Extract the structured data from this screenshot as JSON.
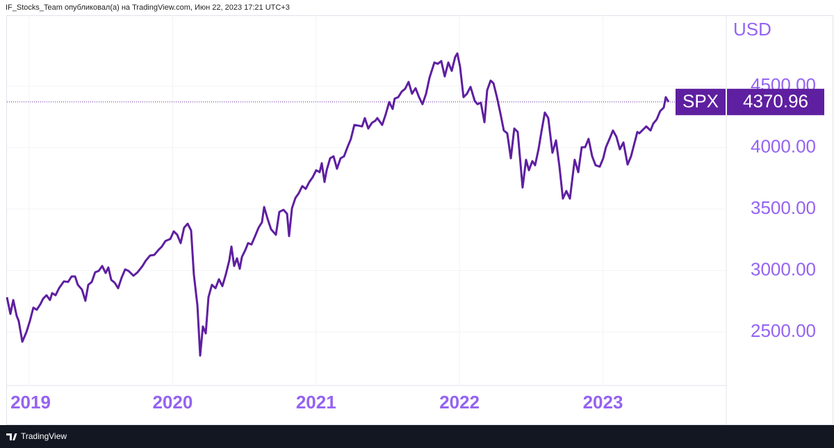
{
  "header": {
    "text": "IF_Stocks_Team опубликовал(а) на TradingView.com, Июн 22, 2023 17:21 UTC+3"
  },
  "footer": {
    "brand": "TradingView"
  },
  "chart_data": {
    "type": "line",
    "axis_label": "USD",
    "grid": true,
    "xlim": [
      2018.845,
      2023.86
    ],
    "xticks": [
      2019,
      2020,
      2021,
      2022,
      2023
    ],
    "ylim": [
      2065,
      5076
    ],
    "yticks": [
      {
        "value": 2500,
        "label": "2500.00"
      },
      {
        "value": 3000,
        "label": "3000.00"
      },
      {
        "value": 3500,
        "label": "3500.00"
      },
      {
        "value": 4000,
        "label": "4000.00"
      },
      {
        "value": 4500,
        "label": "4500.00"
      }
    ],
    "x": [
      2018.845,
      2018.869,
      2018.889,
      2018.913,
      2018.927,
      2018.952,
      2018.981,
      2019.005,
      2019.029,
      2019.053,
      2019.078,
      2019.097,
      2019.121,
      2019.145,
      2019.16,
      2019.184,
      2019.208,
      2019.242,
      2019.271,
      2019.296,
      2019.32,
      2019.339,
      2019.368,
      2019.392,
      2019.412,
      2019.436,
      2019.46,
      2019.485,
      2019.509,
      2019.533,
      2019.552,
      2019.572,
      2019.596,
      2019.62,
      2019.644,
      2019.669,
      2019.693,
      2019.727,
      2019.756,
      2019.79,
      2019.814,
      2019.843,
      2019.872,
      2019.901,
      2019.925,
      2019.95,
      2019.984,
      2020.008,
      2020.032,
      2020.056,
      2020.08,
      2020.105,
      2020.129,
      2020.148,
      2020.173,
      2020.192,
      2020.211,
      2020.231,
      2020.25,
      2020.274,
      2020.299,
      2020.323,
      2020.347,
      2020.371,
      2020.395,
      2020.41,
      2020.429,
      2020.449,
      2020.468,
      2020.483,
      2020.507,
      2020.526,
      2020.55,
      2020.575,
      2020.599,
      2020.623,
      2020.638,
      2020.662,
      2020.686,
      2020.72,
      2020.744,
      2020.773,
      2020.798,
      2020.812,
      2020.832,
      2020.856,
      2020.88,
      2020.904,
      2020.928,
      2020.953,
      2020.977,
      2021.001,
      2021.025,
      2021.04,
      2021.059,
      2021.074,
      2021.098,
      2021.122,
      2021.146,
      2021.171,
      2021.195,
      2021.219,
      2021.243,
      2021.267,
      2021.296,
      2021.321,
      2021.34,
      2021.364,
      2021.389,
      2021.413,
      2021.427,
      2021.461,
      2021.485,
      2021.51,
      2021.534,
      2021.548,
      2021.573,
      2021.597,
      2021.621,
      2021.645,
      2021.669,
      2021.694,
      2021.718,
      2021.742,
      2021.767,
      2021.791,
      2021.825,
      2021.849,
      2021.873,
      2021.897,
      2021.922,
      2021.946,
      2021.97,
      2021.985,
      2022.004,
      2022.028,
      2022.052,
      2022.077,
      2022.106,
      2022.125,
      2022.149,
      2022.174,
      2022.193,
      2022.217,
      2022.237,
      2022.261,
      2022.285,
      2022.309,
      2022.333,
      2022.358,
      2022.382,
      2022.406,
      2022.44,
      2022.464,
      2022.484,
      2022.508,
      2022.527,
      2022.551,
      2022.571,
      2022.595,
      2022.619,
      2022.648,
      2022.673,
      2022.697,
      2022.721,
      2022.745,
      2022.77,
      2022.803,
      2022.828,
      2022.852,
      2022.876,
      2022.9,
      2022.925,
      2022.949,
      2022.978,
      2023.002,
      2023.021,
      2023.046,
      2023.07,
      2023.094,
      2023.118,
      2023.143,
      2023.172,
      2023.196,
      2023.215,
      2023.24,
      2023.254,
      2023.278,
      2023.302,
      2023.332,
      2023.351,
      2023.375,
      2023.399,
      2023.424,
      2023.438,
      2023.458
    ],
    "series": [
      {
        "name": "SPX",
        "color": "#5e1fa0",
        "values": [
          2783,
          2647,
          2760,
          2630,
          2590,
          2421,
          2500,
          2590,
          2698,
          2681,
          2726,
          2771,
          2799,
          2760,
          2816,
          2799,
          2856,
          2912,
          2907,
          2952,
          2952,
          2884,
          2845,
          2754,
          2884,
          2907,
          2986,
          2997,
          3037,
          2980,
          3025,
          2924,
          2901,
          2856,
          2941,
          3009,
          2997,
          2958,
          2986,
          3037,
          3082,
          3122,
          3127,
          3167,
          3195,
          3240,
          3257,
          3319,
          3291,
          3223,
          3348,
          3381,
          3325,
          2969,
          2715,
          2308,
          2545,
          2489,
          2783,
          2884,
          2856,
          2929,
          2873,
          2969,
          3082,
          3195,
          3037,
          3099,
          3014,
          3110,
          3167,
          3223,
          3212,
          3280,
          3348,
          3393,
          3517,
          3421,
          3336,
          3291,
          3477,
          3494,
          3461,
          3280,
          3506,
          3590,
          3630,
          3687,
          3664,
          3720,
          3760,
          3816,
          3800,
          3873,
          3720,
          3816,
          3913,
          3929,
          3828,
          3913,
          3929,
          4003,
          4071,
          4184,
          4178,
          4172,
          4240,
          4155,
          4201,
          4218,
          4240,
          4184,
          4268,
          4370,
          4314,
          4398,
          4410,
          4455,
          4478,
          4534,
          4438,
          4483,
          4410,
          4353,
          4438,
          4568,
          4692,
          4681,
          4704,
          4579,
          4692,
          4624,
          4737,
          4766,
          4658,
          4410,
          4438,
          4494,
          4381,
          4353,
          4365,
          4206,
          4466,
          4545,
          4523,
          4410,
          4280,
          4139,
          4116,
          3913,
          4155,
          4127,
          3675,
          3901,
          3816,
          3890,
          3856,
          3986,
          4127,
          4285,
          4240,
          3958,
          4059,
          3845,
          3585,
          3647,
          3585,
          3901,
          3800,
          4003,
          4003,
          4071,
          3929,
          3856,
          3845,
          3913,
          4003,
          4071,
          4139,
          4088,
          3986,
          4042,
          3862,
          3929,
          4014,
          4127,
          4116,
          4144,
          4172,
          4139,
          4195,
          4229,
          4297,
          4325,
          4410,
          4370.96
        ]
      }
    ]
  }
}
